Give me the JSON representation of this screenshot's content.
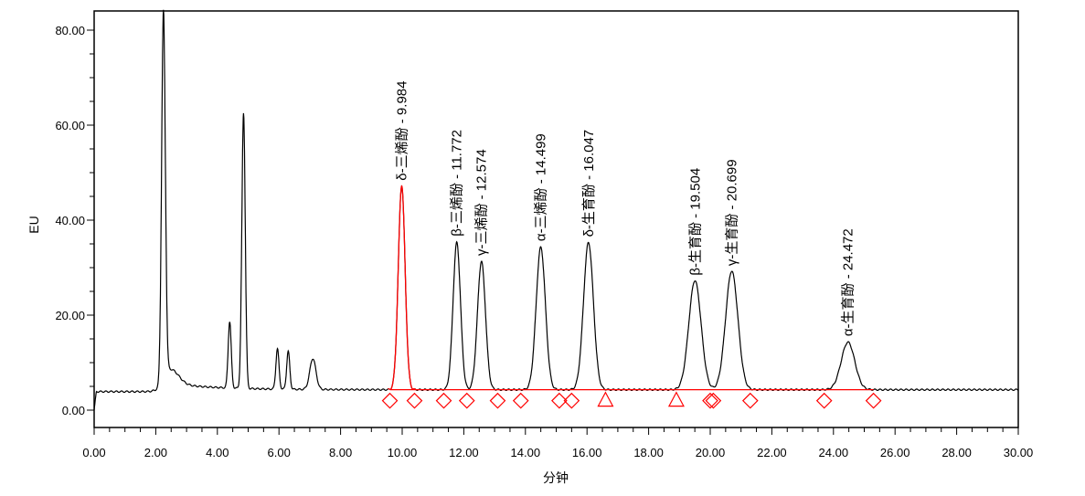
{
  "chart_data": {
    "type": "line",
    "title": "",
    "xlabel": "分钟",
    "ylabel": "EU",
    "xlim": [
      0,
      30
    ],
    "ylim": [
      -4,
      84
    ],
    "x_ticks": [
      "0.00",
      "2.00",
      "4.00",
      "6.00",
      "8.00",
      "10.00",
      "12.00",
      "14.00",
      "16.00",
      "18.00",
      "20.00",
      "22.00",
      "24.00",
      "26.00",
      "28.00",
      "30.00"
    ],
    "y_ticks": [
      "0.00",
      "20.00",
      "40.00",
      "60.00",
      "80.00"
    ],
    "baseline": 4.3,
    "colors": {
      "trace": "#000000",
      "integrated": "#ff0000",
      "axis": "#000000"
    },
    "unlabeled_peaks": [
      {
        "rt": 2.25,
        "height": 78,
        "width": 0.06
      },
      {
        "rt": 2.5,
        "height": 3,
        "width": 0.25
      },
      {
        "rt": 4.4,
        "height": 14,
        "width": 0.05
      },
      {
        "rt": 4.85,
        "height": 58,
        "width": 0.055
      },
      {
        "rt": 5.95,
        "height": 8.5,
        "width": 0.05
      },
      {
        "rt": 6.3,
        "height": 8,
        "width": 0.05
      },
      {
        "rt": 7.1,
        "height": 6.5,
        "width": 0.1
      }
    ],
    "peaks": [
      {
        "label": "δ-三烯酚 - 9.984",
        "rt": 9.984,
        "height": 43,
        "width": 0.11,
        "highlighted": true
      },
      {
        "label": "β-三烯酚 - 11.772",
        "rt": 11.772,
        "height": 31,
        "width": 0.12
      },
      {
        "label": "γ-三烯酚 - 12.574",
        "rt": 12.574,
        "height": 27,
        "width": 0.13
      },
      {
        "label": "α-三烯酚 - 14.499",
        "rt": 14.499,
        "height": 30,
        "width": 0.15
      },
      {
        "label": "δ-生育酚 - 16.047",
        "rt": 16.047,
        "height": 31,
        "width": 0.16
      },
      {
        "label": "β-生育酚 - 19.504",
        "rt": 19.504,
        "height": 23,
        "width": 0.2
      },
      {
        "label": "γ-生育酚 - 20.699",
        "rt": 20.699,
        "height": 25,
        "width": 0.2
      },
      {
        "label": "α-生育酚 - 24.472",
        "rt": 24.472,
        "height": 10,
        "width": 0.22
      }
    ],
    "markers": [
      {
        "rt": 9.6,
        "shape": "diamond"
      },
      {
        "rt": 10.4,
        "shape": "diamond"
      },
      {
        "rt": 11.35,
        "shape": "diamond"
      },
      {
        "rt": 12.1,
        "shape": "diamond"
      },
      {
        "rt": 13.1,
        "shape": "diamond"
      },
      {
        "rt": 13.85,
        "shape": "diamond"
      },
      {
        "rt": 15.1,
        "shape": "diamond"
      },
      {
        "rt": 15.5,
        "shape": "diamond"
      },
      {
        "rt": 16.6,
        "shape": "triangle"
      },
      {
        "rt": 18.9,
        "shape": "triangle"
      },
      {
        "rt": 20.0,
        "shape": "diamond"
      },
      {
        "rt": 20.1,
        "shape": "diamond"
      },
      {
        "rt": 21.3,
        "shape": "diamond"
      },
      {
        "rt": 23.7,
        "shape": "diamond"
      },
      {
        "rt": 25.3,
        "shape": "diamond"
      }
    ],
    "integration_line": {
      "from": 9.6,
      "to": 25.3
    },
    "grid": false,
    "legend": "none"
  }
}
